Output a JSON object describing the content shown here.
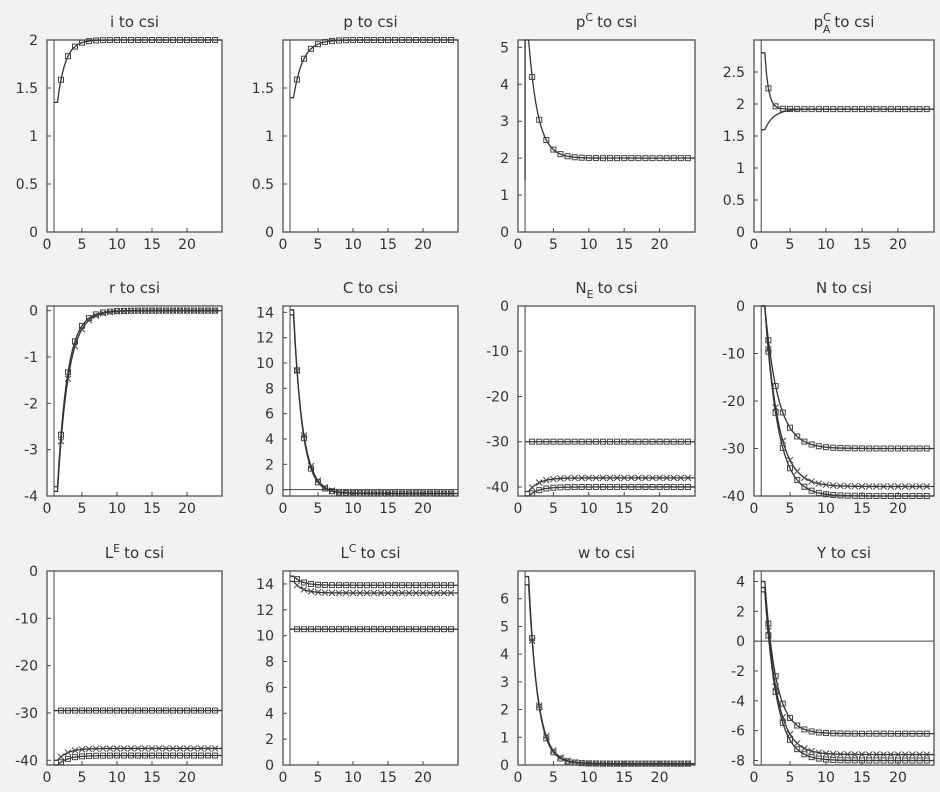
{
  "chart_data": [
    {
      "type": "line",
      "title": "i to csi",
      "xlim": [
        0,
        25
      ],
      "ylim": [
        0,
        2
      ],
      "xticks": [
        0,
        5,
        10,
        15,
        20
      ],
      "yticks": [
        0,
        0.5,
        1,
        1.5,
        2
      ],
      "zero_line": false,
      "series": [
        {
          "start": 1.35,
          "end": 2,
          "rate": 0.9,
          "marker": "square"
        }
      ]
    },
    {
      "type": "line",
      "title": "p to csi",
      "xlim": [
        0,
        25
      ],
      "ylim": [
        0,
        2
      ],
      "xticks": [
        0,
        5,
        10,
        15,
        20
      ],
      "yticks": [
        0,
        0.5,
        1,
        1.5
      ],
      "zero_line": false,
      "series": [
        {
          "start": 1.4,
          "end": 2,
          "rate": 0.75,
          "marker": "square"
        }
      ]
    },
    {
      "type": "line",
      "title": "p^C to csi",
      "xlim": [
        0,
        25
      ],
      "ylim": [
        0,
        5.2
      ],
      "xticks": [
        0,
        5,
        10,
        15,
        20
      ],
      "yticks": [
        0,
        1,
        2,
        3,
        4,
        5
      ],
      "zero_line": false,
      "series": [
        {
          "start": 5.2,
          "end": 2,
          "rate": 0.75,
          "marker": "square",
          "first": 1.4
        }
      ]
    },
    {
      "type": "line",
      "title": "p_A^C to csi",
      "xlim": [
        0,
        25
      ],
      "ylim": [
        0,
        3
      ],
      "xticks": [
        0,
        5,
        10,
        15,
        20
      ],
      "yticks": [
        0,
        0.5,
        1,
        1.5,
        2,
        2.5
      ],
      "zero_line": false,
      "series": [
        {
          "start": 2.8,
          "end": 1.92,
          "rate": 2,
          "marker": "square"
        },
        {
          "start": 1.6,
          "end": 1.92,
          "rate": 0.8,
          "marker": "none"
        }
      ]
    },
    {
      "type": "line",
      "title": "r to csi",
      "xlim": [
        0,
        25
      ],
      "ylim": [
        -4,
        0.1
      ],
      "xticks": [
        0,
        5,
        10,
        15,
        20
      ],
      "yticks": [
        -4,
        -3,
        -2,
        -1,
        0
      ],
      "zero_line": false,
      "series": [
        {
          "start": -3.8,
          "end": 0,
          "rate": 0.7,
          "marker": "square"
        },
        {
          "start": -3.9,
          "end": 0,
          "rate": 0.65,
          "marker": "x"
        }
      ]
    },
    {
      "type": "line",
      "title": "C to csi",
      "xlim": [
        0,
        25
      ],
      "ylim": [
        -0.5,
        14.5
      ],
      "xticks": [
        0,
        5,
        10,
        15,
        20
      ],
      "yticks": [
        0,
        2,
        4,
        6,
        8,
        10,
        12,
        14
      ],
      "zero_line": true,
      "series": [
        {
          "start": 14.2,
          "end": -0.3,
          "rate": 0.8,
          "marker": "square"
        },
        {
          "start": 13.8,
          "end": -0.3,
          "rate": 0.75,
          "marker": "x"
        }
      ]
    },
    {
      "type": "line",
      "title": "N_E to csi",
      "xlim": [
        0,
        25
      ],
      "ylim": [
        -42,
        0
      ],
      "xticks": [
        0,
        5,
        10,
        15,
        20
      ],
      "yticks": [
        -40,
        -30,
        -20,
        -10,
        0
      ],
      "zero_line": false,
      "series": [
        {
          "start": -42,
          "end": -40,
          "rate": 0.7,
          "marker": "square"
        },
        {
          "start": -41,
          "end": -38,
          "rate": 0.7,
          "marker": "x"
        },
        {
          "start": -30,
          "end": -30,
          "rate": 0.7,
          "marker": "square"
        }
      ]
    },
    {
      "type": "line",
      "title": "N to csi",
      "xlim": [
        0,
        25
      ],
      "ylim": [
        -40,
        0
      ],
      "xticks": [
        0,
        5,
        10,
        15,
        20
      ],
      "yticks": [
        -40,
        -30,
        -20,
        -10,
        0
      ],
      "zero_line": false,
      "series": [
        {
          "start": 0,
          "end": -30,
          "rate": 0.55,
          "marker": "square"
        },
        {
          "start": 0,
          "end": -38,
          "rate": 0.55,
          "marker": "x"
        },
        {
          "start": 0,
          "end": -40,
          "rate": 0.55,
          "marker": "square"
        }
      ]
    },
    {
      "type": "line",
      "title": "L^E to csi",
      "xlim": [
        0,
        25
      ],
      "ylim": [
        -41,
        0
      ],
      "xticks": [
        0,
        5,
        10,
        15,
        20
      ],
      "yticks": [
        -40,
        -30,
        -20,
        -10,
        0
      ],
      "zero_line": false,
      "series": [
        {
          "start": -41,
          "end": -39,
          "rate": 0.7,
          "marker": "square"
        },
        {
          "start": -40,
          "end": -37.5,
          "rate": 0.7,
          "marker": "x"
        },
        {
          "start": -29.5,
          "end": -29.5,
          "rate": 0.7,
          "marker": "square"
        }
      ]
    },
    {
      "type": "line",
      "title": "L^C to csi",
      "xlim": [
        0,
        25
      ],
      "ylim": [
        0,
        15
      ],
      "xticks": [
        0,
        5,
        10,
        15,
        20
      ],
      "yticks": [
        0,
        2,
        4,
        6,
        8,
        10,
        12,
        14
      ],
      "zero_line": false,
      "series": [
        {
          "start": 14.6,
          "end": 13.9,
          "rate": 0.8,
          "marker": "square"
        },
        {
          "start": 14.2,
          "end": 13.3,
          "rate": 0.8,
          "marker": "x"
        },
        {
          "start": 10.5,
          "end": 10.5,
          "rate": 0.8,
          "marker": "square"
        }
      ]
    },
    {
      "type": "line",
      "title": "w to csi",
      "xlim": [
        0,
        25
      ],
      "ylim": [
        0,
        7
      ],
      "xticks": [
        0,
        5,
        10,
        15,
        20
      ],
      "yticks": [
        0,
        1,
        2,
        3,
        4,
        5,
        6
      ],
      "zero_line": true,
      "series": [
        {
          "start": 6.8,
          "end": 0.05,
          "rate": 0.8,
          "marker": "square"
        },
        {
          "start": 6.5,
          "end": 0.05,
          "rate": 0.75,
          "marker": "x"
        }
      ]
    },
    {
      "type": "line",
      "title": "Y to csi",
      "xlim": [
        0,
        25
      ],
      "ylim": [
        -8.3,
        4.7
      ],
      "xticks": [
        0,
        5,
        10,
        15,
        20
      ],
      "yticks": [
        -8,
        -6,
        -4,
        -2,
        0,
        2,
        4
      ],
      "zero_line": true,
      "series": [
        {
          "start": 4,
          "end": -6.2,
          "rate": 0.65,
          "marker": "square"
        },
        {
          "start": 3.6,
          "end": -7.6,
          "rate": 0.6,
          "marker": "x"
        },
        {
          "start": 3.3,
          "end": -8,
          "rate": 0.6,
          "marker": "square"
        }
      ]
    }
  ]
}
